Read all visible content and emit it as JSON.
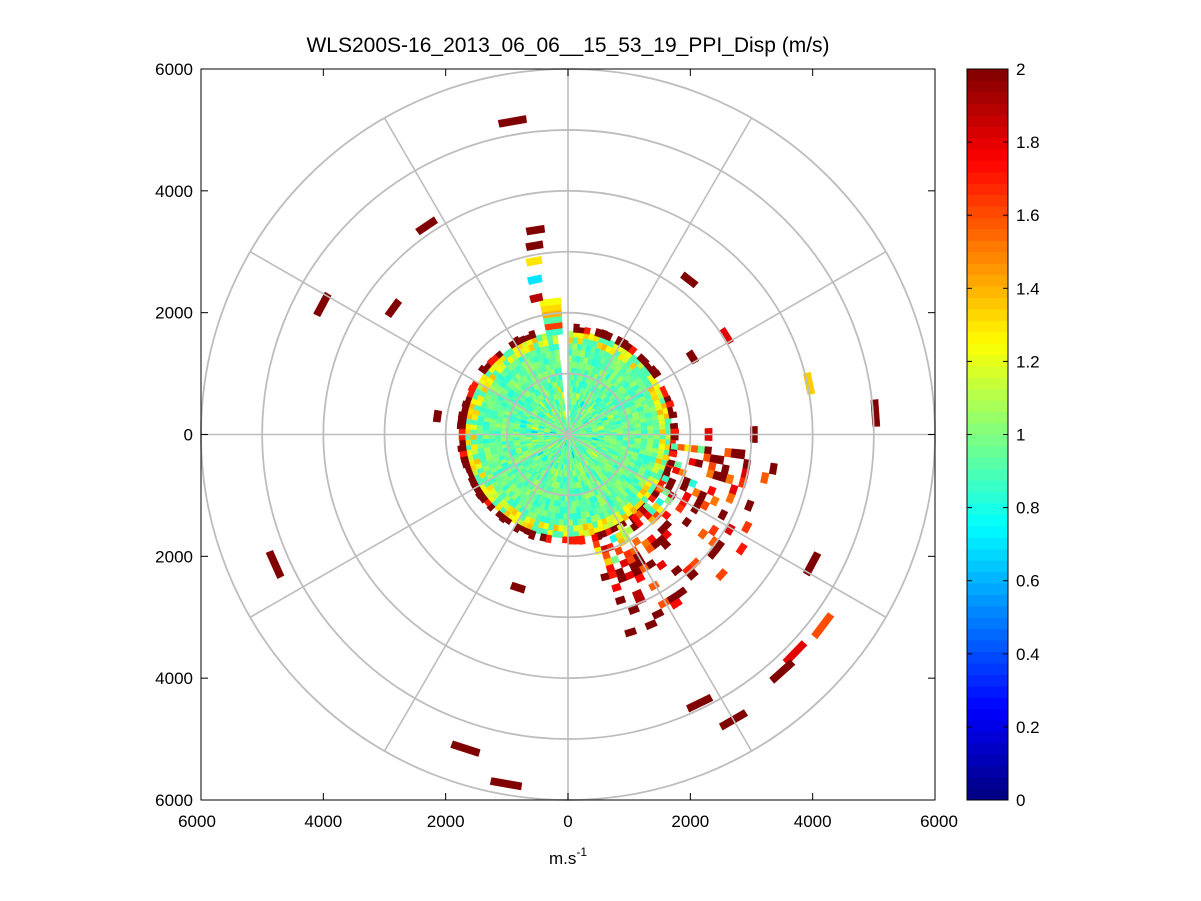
{
  "chart_data": {
    "type": "heatmap",
    "subtype": "polar-ppi",
    "title": "WLS200S-16_2013_06_06__15_53_19_PPI_Disp (m/s)",
    "xlabel": "m.s",
    "xlabel_superscript": "-1",
    "xlim": [
      -6000,
      6000
    ],
    "ylim": [
      -6000,
      6000
    ],
    "x_ticks": [
      -6000,
      -4000,
      -2000,
      0,
      2000,
      4000,
      6000
    ],
    "x_tick_labels": [
      "6000",
      "4000",
      "2000",
      "0",
      "2000",
      "4000",
      "6000"
    ],
    "y_ticks": [
      6000,
      4000,
      2000,
      0,
      -2000,
      -4000,
      -6000
    ],
    "y_tick_labels": [
      "6000",
      "4000",
      "2000",
      "0",
      "2000",
      "4000",
      "6000"
    ],
    "range_rings_m": [
      1000,
      2000,
      3000,
      4000,
      5000,
      6000
    ],
    "spoke_step_deg": 30,
    "colorbar": {
      "colormap": "jet",
      "range": [
        0,
        2
      ],
      "ticks": [
        0,
        0.2,
        0.4,
        0.6,
        0.8,
        1,
        1.2,
        1.4,
        1.6,
        1.8,
        2
      ],
      "tick_labels": [
        "0",
        "0.2",
        "0.4",
        "0.6",
        "0.8",
        "1",
        "1.2",
        "1.4",
        "1.6",
        "1.8",
        "2"
      ]
    },
    "near_field": {
      "max_range_m": 1650,
      "gap_azimuth_deg": [
        -7,
        -1
      ],
      "typical_value": 0.95,
      "edge_value": 2.0
    },
    "echo_patches": [
      {
        "range_m": 5224,
        "azimuth_deg": -10,
        "value": 2.0
      },
      {
        "range_m": 3400,
        "azimuth_deg": -9,
        "value": 2.0
      },
      {
        "range_m": 3150,
        "azimuth_deg": -10,
        "value": 2.0
      },
      {
        "range_m": 2900,
        "azimuth_deg": -11,
        "value": 1.3
      },
      {
        "range_m": 2600,
        "azimuth_deg": -12,
        "value": 0.7
      },
      {
        "range_m": 2300,
        "azimuth_deg": -13,
        "value": 1.9
      },
      {
        "range_m": 4135,
        "azimuth_deg": -34,
        "value": 2.0
      },
      {
        "range_m": 3531,
        "azimuth_deg": -54,
        "value": 2.0
      },
      {
        "range_m": 4551,
        "azimuth_deg": -62,
        "value": 2.0
      },
      {
        "range_m": 2157,
        "azimuth_deg": -82,
        "value": 2.0
      },
      {
        "range_m": 3222,
        "azimuth_deg": 38,
        "value": 2.0
      },
      {
        "range_m": 3051,
        "azimuth_deg": 58,
        "value": 1.8
      },
      {
        "range_m": 2400,
        "azimuth_deg": 58,
        "value": 2.0
      },
      {
        "range_m": 4033,
        "azimuth_deg": 78,
        "value": 1.35
      },
      {
        "range_m": 5042,
        "azimuth_deg": 86,
        "value": 2.0
      },
      {
        "range_m": 3041,
        "azimuth_deg": 90,
        "value": 2.0
      },
      {
        "range_m": 2300,
        "azimuth_deg": 90,
        "value": 1.8
      },
      {
        "range_m": 5247,
        "azimuth_deg": 246,
        "value": 2.0
      },
      {
        "range_m": 2646,
        "azimuth_deg": 198,
        "value": 2.0
      },
      {
        "range_m": 4523,
        "azimuth_deg": 118,
        "value": 2.0
      },
      {
        "range_m": 5218,
        "azimuth_deg": 127,
        "value": 1.6
      },
      {
        "range_m": 5162,
        "azimuth_deg": 134,
        "value": 1.8
      },
      {
        "range_m": 5238,
        "azimuth_deg": 138,
        "value": 2.0
      },
      {
        "range_m": 4911,
        "azimuth_deg": 154,
        "value": 2.0
      },
      {
        "range_m": 5413,
        "azimuth_deg": 150,
        "value": 2.0
      },
      {
        "range_m": 5427,
        "azimuth_deg": 198,
        "value": 2.0
      },
      {
        "range_m": 5827,
        "azimuth_deg": 190,
        "value": 2.0
      }
    ],
    "southeast_cluster": {
      "range_m": [
        1700,
        3400
      ],
      "azimuth_deg": [
        95,
        165
      ],
      "typical_value": 1.9
    }
  }
}
